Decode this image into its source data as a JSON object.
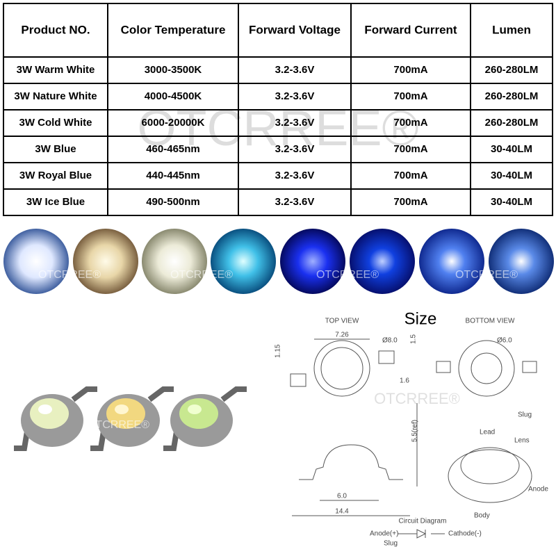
{
  "table": {
    "header": [
      "Product NO.",
      "Color Temperature",
      "Forward Voltage",
      "Forward Current",
      "Lumen"
    ],
    "rows": [
      [
        "3W Warm White",
        "3000-3500K",
        "3.2-3.6V",
        "700mA",
        "260-280LM"
      ],
      [
        "3W Nature White",
        "4000-4500K",
        "3.2-3.6V",
        "700mA",
        "260-280LM"
      ],
      [
        "3W Cold White",
        "6000-20000K",
        "3.2-3.6V",
        "700mA",
        "260-280LM"
      ],
      [
        "3W Blue",
        "460-465nm",
        "3.2-3.6V",
        "700mA",
        "30-40LM"
      ],
      [
        "3W Royal Blue",
        "440-445nm",
        "3.2-3.6V",
        "700mA",
        "30-40LM"
      ],
      [
        "3W Ice Blue",
        "490-500nm",
        "3.2-3.6V",
        "700mA",
        "30-40LM"
      ]
    ]
  },
  "watermark": "OTCRREE®",
  "diagram": {
    "title": "Size",
    "top_view": "TOP VIEW",
    "bottom_view": "BOTTOM VIEW",
    "dimensions": [
      "7.26",
      "Ø8.0",
      "1.5",
      "1.15",
      "1.6",
      "Ø6.0",
      "5.5(ref)",
      "6.0",
      "14.4"
    ],
    "parts": [
      "Slug",
      "Lead",
      "Lens",
      "Anode",
      "Body"
    ],
    "circuit": {
      "title": "Circuit Diagram",
      "anode": "Anode(+)",
      "cathode": "Cathode(-)",
      "slug": "Slug"
    }
  }
}
